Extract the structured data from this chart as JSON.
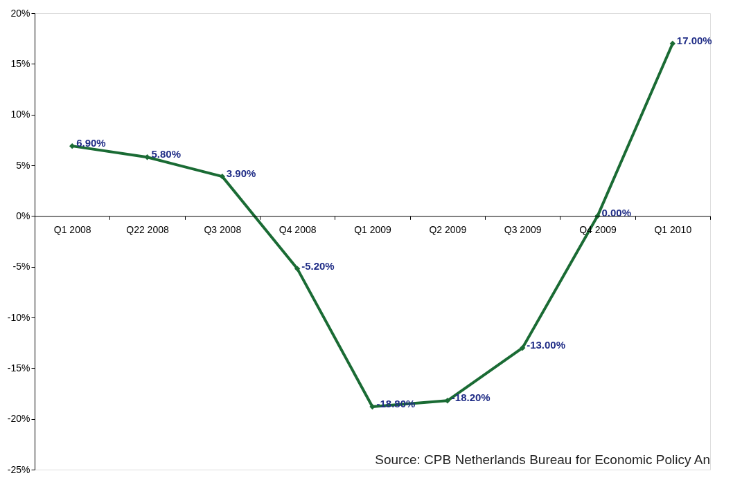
{
  "chart_data": {
    "type": "line",
    "categories": [
      "Q1 2008",
      "Q22 2008",
      "Q3 2008",
      "Q4 2008",
      "Q1 2009",
      "Q2 2009",
      "Q3 2009",
      "Q4 2009",
      "Q1 2010"
    ],
    "series": [
      {
        "color": "#1a6b34",
        "values": [
          6.9,
          5.8,
          3.9,
          -5.2,
          -18.8,
          -18.2,
          -13.0,
          0.0,
          17.0
        ],
        "value_labels": [
          "6.90%",
          "5.80%",
          "3.90%",
          "-5.20%",
          "-18.80%",
          "-18.20%",
          "-13.00%",
          "0.00%",
          "17.00%"
        ]
      }
    ],
    "ylim": [
      -25,
      20
    ],
    "yticks": [
      {
        "value": -25,
        "label": "-25%"
      },
      {
        "value": -20,
        "label": "-20%"
      },
      {
        "value": -15,
        "label": "-15%"
      },
      {
        "value": -10,
        "label": "-10%"
      },
      {
        "value": -5,
        "label": "-5%"
      },
      {
        "value": 0,
        "label": "0%"
      },
      {
        "value": 5,
        "label": "5%"
      },
      {
        "value": 10,
        "label": "10%"
      },
      {
        "value": 15,
        "label": "15%"
      },
      {
        "value": 20,
        "label": "20%"
      }
    ],
    "marker": "diamond",
    "line_style": "solid",
    "grid": false,
    "annotations": [
      "Source: CPB Netherlands Bureau for Economic Policy An"
    ]
  }
}
